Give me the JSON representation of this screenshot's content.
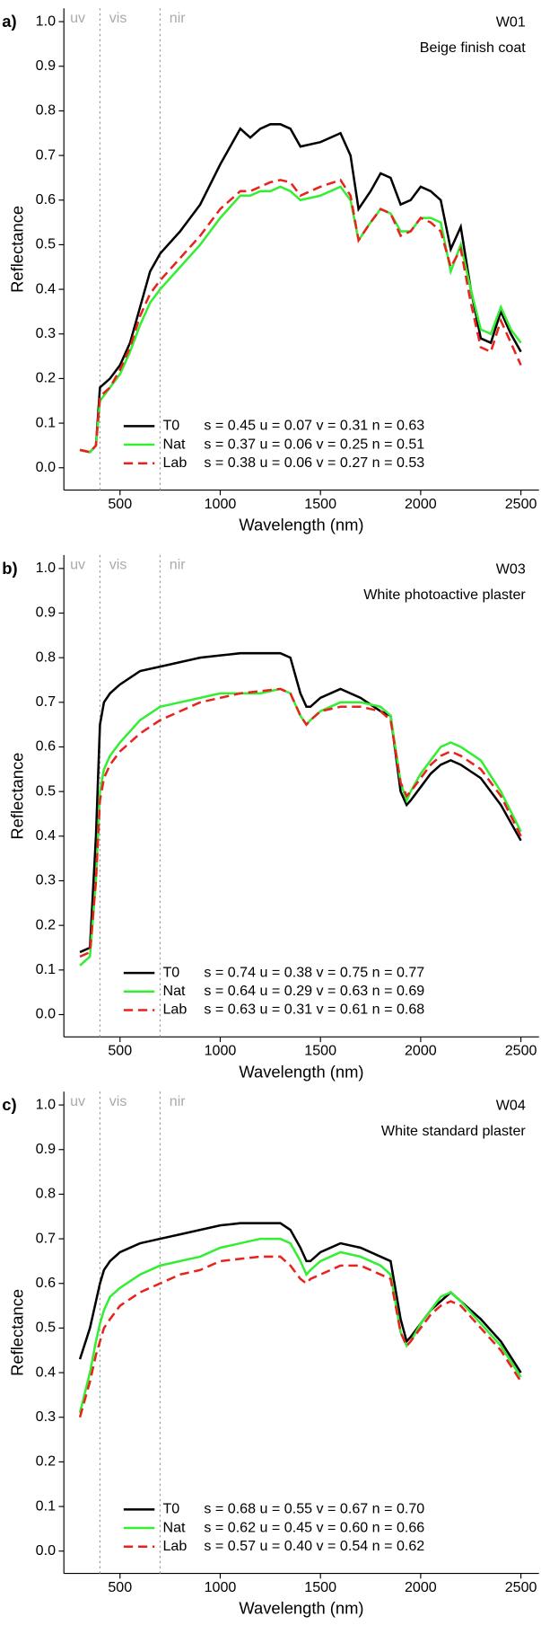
{
  "chart_data": [
    {
      "type": "line",
      "panel": "a)",
      "title": "W01",
      "subtitle": "Beige finish coat",
      "xlabel": "Wavelength (nm)",
      "ylabel": "Reflectance",
      "xlim": [
        220,
        2590
      ],
      "ylim": [
        -0.05,
        1.03
      ],
      "xticks": [
        500,
        1000,
        1500,
        2000,
        2500
      ],
      "yticks": [
        {
          "value": 0,
          "label": "0.0"
        },
        0.1,
        0.2,
        0.3,
        0.4,
        0.5,
        0.6,
        0.7,
        0.8,
        0.9,
        {
          "value": 1,
          "label": "1.0"
        }
      ],
      "region_labels": [
        "uv",
        "vis",
        "nir"
      ],
      "region_bounds": [
        400,
        700
      ],
      "grid": false,
      "legend": "bottom",
      "x": [
        300,
        350,
        380,
        400,
        450,
        500,
        550,
        600,
        650,
        700,
        800,
        900,
        1000,
        1100,
        1150,
        1200,
        1250,
        1300,
        1350,
        1400,
        1500,
        1600,
        1650,
        1690,
        1750,
        1800,
        1850,
        1900,
        1950,
        2000,
        2050,
        2100,
        2150,
        2200,
        2250,
        2300,
        2350,
        2400,
        2450,
        2500
      ],
      "series": [
        {
          "name": "T0",
          "label": "s = 0.45 u = 0.07 v = 0.31 n = 0.63",
          "color": "#000000",
          "line_style": "solid",
          "values": [
            0.04,
            0.035,
            0.05,
            0.18,
            0.2,
            0.23,
            0.28,
            0.36,
            0.44,
            0.48,
            0.53,
            0.59,
            0.68,
            0.76,
            0.74,
            0.76,
            0.77,
            0.77,
            0.76,
            0.72,
            0.73,
            0.75,
            0.7,
            0.58,
            0.62,
            0.66,
            0.65,
            0.59,
            0.6,
            0.63,
            0.62,
            0.6,
            0.49,
            0.54,
            0.4,
            0.29,
            0.28,
            0.35,
            0.3,
            0.26
          ]
        },
        {
          "name": "Nat",
          "label": "s = 0.37 u = 0.06 v = 0.25 n = 0.51",
          "color": "#33ee33",
          "line_style": "solid",
          "values": [
            0.04,
            0.035,
            0.05,
            0.15,
            0.18,
            0.21,
            0.26,
            0.32,
            0.37,
            0.4,
            0.45,
            0.5,
            0.56,
            0.61,
            0.61,
            0.62,
            0.62,
            0.63,
            0.62,
            0.6,
            0.61,
            0.63,
            0.6,
            0.51,
            0.55,
            0.58,
            0.57,
            0.53,
            0.53,
            0.56,
            0.56,
            0.55,
            0.44,
            0.5,
            0.4,
            0.31,
            0.3,
            0.36,
            0.31,
            0.28
          ]
        },
        {
          "name": "Lab",
          "label": "s = 0.38 u = 0.06 v = 0.27 n = 0.53",
          "color": "#e8221c",
          "line_style": "dashed",
          "values": [
            0.04,
            0.035,
            0.05,
            0.16,
            0.18,
            0.22,
            0.27,
            0.34,
            0.39,
            0.42,
            0.47,
            0.52,
            0.58,
            0.62,
            0.62,
            0.63,
            0.64,
            0.645,
            0.64,
            0.61,
            0.63,
            0.645,
            0.61,
            0.51,
            0.55,
            0.58,
            0.57,
            0.52,
            0.53,
            0.56,
            0.55,
            0.53,
            0.45,
            0.49,
            0.37,
            0.27,
            0.26,
            0.33,
            0.28,
            0.23
          ]
        }
      ]
    },
    {
      "type": "line",
      "panel": "b)",
      "title": "W03",
      "subtitle": "White photoactive plaster",
      "xlabel": "Wavelength (nm)",
      "ylabel": "Reflectance",
      "xlim": [
        220,
        2590
      ],
      "ylim": [
        -0.05,
        1.03
      ],
      "xticks": [
        500,
        1000,
        1500,
        2000,
        2500
      ],
      "yticks": [
        {
          "value": 0,
          "label": "0.0"
        },
        0.1,
        0.2,
        0.3,
        0.4,
        0.5,
        0.6,
        0.7,
        0.8,
        0.9,
        {
          "value": 1,
          "label": "1.0"
        }
      ],
      "region_labels": [
        "uv",
        "vis",
        "nir"
      ],
      "region_bounds": [
        400,
        700
      ],
      "grid": false,
      "legend": "bottom",
      "x": [
        300,
        350,
        380,
        400,
        420,
        450,
        500,
        600,
        700,
        800,
        900,
        1000,
        1100,
        1200,
        1300,
        1350,
        1400,
        1430,
        1450,
        1500,
        1600,
        1700,
        1800,
        1850,
        1900,
        1930,
        1950,
        2000,
        2050,
        2100,
        2150,
        2200,
        2300,
        2400,
        2500
      ],
      "series": [
        {
          "name": "T0",
          "label": "s = 0.74 u = 0.38 v = 0.75 n = 0.77",
          "color": "#000000",
          "line_style": "solid",
          "values": [
            0.14,
            0.15,
            0.4,
            0.65,
            0.7,
            0.72,
            0.74,
            0.77,
            0.78,
            0.79,
            0.8,
            0.805,
            0.81,
            0.81,
            0.81,
            0.8,
            0.72,
            0.69,
            0.69,
            0.71,
            0.73,
            0.71,
            0.68,
            0.67,
            0.5,
            0.47,
            0.48,
            0.51,
            0.54,
            0.56,
            0.57,
            0.56,
            0.53,
            0.47,
            0.39
          ]
        },
        {
          "name": "Nat",
          "label": "s = 0.64 u = 0.29 v = 0.63 n = 0.69",
          "color": "#33ee33",
          "line_style": "solid",
          "values": [
            0.11,
            0.13,
            0.3,
            0.5,
            0.55,
            0.58,
            0.61,
            0.66,
            0.69,
            0.7,
            0.71,
            0.72,
            0.72,
            0.72,
            0.73,
            0.72,
            0.67,
            0.65,
            0.66,
            0.68,
            0.7,
            0.7,
            0.69,
            0.67,
            0.52,
            0.48,
            0.5,
            0.54,
            0.57,
            0.6,
            0.61,
            0.6,
            0.57,
            0.5,
            0.41
          ]
        },
        {
          "name": "Lab",
          "label": "s = 0.63 u = 0.31 v = 0.61 n = 0.68",
          "color": "#e8221c",
          "line_style": "dashed",
          "values": [
            0.13,
            0.14,
            0.3,
            0.48,
            0.53,
            0.56,
            0.59,
            0.63,
            0.66,
            0.68,
            0.7,
            0.71,
            0.72,
            0.725,
            0.73,
            0.72,
            0.67,
            0.65,
            0.66,
            0.68,
            0.69,
            0.69,
            0.68,
            0.66,
            0.52,
            0.49,
            0.5,
            0.53,
            0.56,
            0.58,
            0.59,
            0.58,
            0.55,
            0.49,
            0.4
          ]
        }
      ]
    },
    {
      "type": "line",
      "panel": "c)",
      "title": "W04",
      "subtitle": "White standard plaster",
      "xlabel": "Wavelength (nm)",
      "ylabel": "Reflectance",
      "xlim": [
        220,
        2590
      ],
      "ylim": [
        -0.05,
        1.03
      ],
      "xticks": [
        500,
        1000,
        1500,
        2000,
        2500
      ],
      "yticks": [
        {
          "value": 0,
          "label": "0.0"
        },
        0.1,
        0.2,
        0.3,
        0.4,
        0.5,
        0.6,
        0.7,
        0.8,
        0.9,
        {
          "value": 1,
          "label": "1.0"
        }
      ],
      "region_labels": [
        "uv",
        "vis",
        "nir"
      ],
      "region_bounds": [
        400,
        700
      ],
      "grid": false,
      "legend": "bottom",
      "x": [
        300,
        350,
        380,
        400,
        420,
        450,
        500,
        600,
        700,
        800,
        900,
        1000,
        1100,
        1200,
        1300,
        1350,
        1400,
        1430,
        1450,
        1500,
        1600,
        1700,
        1800,
        1850,
        1900,
        1930,
        1950,
        2000,
        2050,
        2100,
        2150,
        2200,
        2300,
        2400,
        2500
      ],
      "series": [
        {
          "name": "T0",
          "label": "s = 0.68 u = 0.55 v = 0.67 n = 0.70",
          "color": "#000000",
          "line_style": "solid",
          "values": [
            0.43,
            0.5,
            0.56,
            0.6,
            0.63,
            0.65,
            0.67,
            0.69,
            0.7,
            0.71,
            0.72,
            0.73,
            0.735,
            0.735,
            0.735,
            0.72,
            0.68,
            0.65,
            0.65,
            0.67,
            0.69,
            0.68,
            0.66,
            0.65,
            0.52,
            0.47,
            0.48,
            0.51,
            0.54,
            0.56,
            0.58,
            0.56,
            0.52,
            0.47,
            0.4
          ]
        },
        {
          "name": "Nat",
          "label": "s = 0.62 u = 0.45 v = 0.60 n = 0.66",
          "color": "#33ee33",
          "line_style": "solid",
          "values": [
            0.31,
            0.4,
            0.47,
            0.51,
            0.54,
            0.57,
            0.59,
            0.62,
            0.64,
            0.65,
            0.66,
            0.68,
            0.69,
            0.7,
            0.7,
            0.69,
            0.65,
            0.62,
            0.63,
            0.65,
            0.67,
            0.66,
            0.64,
            0.62,
            0.49,
            0.46,
            0.47,
            0.51,
            0.54,
            0.57,
            0.58,
            0.56,
            0.51,
            0.46,
            0.39
          ]
        },
        {
          "name": "Lab",
          "label": "s = 0.57 u = 0.40 v = 0.54 n = 0.62",
          "color": "#e8221c",
          "line_style": "dashed",
          "values": [
            0.3,
            0.38,
            0.44,
            0.47,
            0.5,
            0.52,
            0.55,
            0.58,
            0.6,
            0.62,
            0.63,
            0.65,
            0.655,
            0.66,
            0.66,
            0.64,
            0.61,
            0.6,
            0.61,
            0.62,
            0.64,
            0.64,
            0.62,
            0.61,
            0.49,
            0.46,
            0.47,
            0.5,
            0.53,
            0.55,
            0.56,
            0.55,
            0.5,
            0.45,
            0.38
          ]
        }
      ]
    }
  ]
}
